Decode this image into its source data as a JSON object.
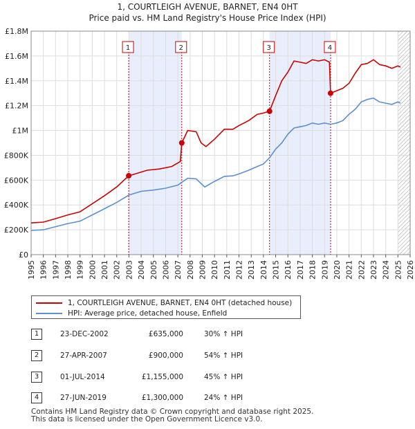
{
  "chart_data": {
    "type": "line",
    "title": "1, COURTLEIGH AVENUE, BARNET, EN4 0HT",
    "subtitle": "Price paid vs. HM Land Registry's House Price Index (HPI)",
    "xlabel": "",
    "ylabel": "",
    "xlim": [
      1995,
      2026
    ],
    "ylim": [
      0,
      1800000
    ],
    "x_ticks": [
      "1995",
      "1996",
      "1997",
      "1998",
      "1999",
      "2000",
      "2001",
      "2002",
      "2003",
      "2004",
      "2005",
      "2006",
      "2007",
      "2008",
      "2009",
      "2010",
      "2011",
      "2012",
      "2013",
      "2014",
      "2015",
      "2016",
      "2017",
      "2018",
      "2019",
      "2020",
      "2021",
      "2022",
      "2023",
      "2024",
      "2025",
      "2026"
    ],
    "y_ticks": [
      {
        "value": 0,
        "label": "£0"
      },
      {
        "value": 200000,
        "label": "£200K"
      },
      {
        "value": 400000,
        "label": "£400K"
      },
      {
        "value": 600000,
        "label": "£600K"
      },
      {
        "value": 800000,
        "label": "£800K"
      },
      {
        "value": 1000000,
        "label": "£1M"
      },
      {
        "value": 1200000,
        "label": "£1.2M"
      },
      {
        "value": 1400000,
        "label": "£1.4M"
      },
      {
        "value": 1600000,
        "label": "£1.6M"
      },
      {
        "value": 1800000,
        "label": "£1.8M"
      }
    ],
    "shaded_ranges": [
      [
        2002.98,
        2007.32
      ],
      [
        2014.5,
        2019.49
      ]
    ],
    "hatched_from": 2025.0,
    "series": [
      {
        "name": "1, COURTLEIGH AVENUE, BARNET, EN4 0HT (detached house)",
        "color": "#cc0000",
        "points": [
          [
            1995.0,
            255000
          ],
          [
            1996.0,
            262000
          ],
          [
            1997.0,
            290000
          ],
          [
            1998.0,
            320000
          ],
          [
            1999.0,
            345000
          ],
          [
            2000.0,
            410000
          ],
          [
            2001.0,
            475000
          ],
          [
            2002.0,
            545000
          ],
          [
            2002.98,
            635000
          ],
          [
            2003.5,
            650000
          ],
          [
            2004.5,
            680000
          ],
          [
            2005.5,
            690000
          ],
          [
            2006.5,
            710000
          ],
          [
            2007.2,
            750000
          ],
          [
            2007.32,
            900000
          ],
          [
            2007.8,
            1000000
          ],
          [
            2008.5,
            990000
          ],
          [
            2008.9,
            900000
          ],
          [
            2009.3,
            870000
          ],
          [
            2010.0,
            930000
          ],
          [
            2010.8,
            1010000
          ],
          [
            2011.5,
            1010000
          ],
          [
            2012.0,
            1040000
          ],
          [
            2012.8,
            1080000
          ],
          [
            2013.5,
            1130000
          ],
          [
            2014.0,
            1140000
          ],
          [
            2014.5,
            1155000
          ],
          [
            2015.0,
            1280000
          ],
          [
            2015.5,
            1400000
          ],
          [
            2016.0,
            1470000
          ],
          [
            2016.5,
            1560000
          ],
          [
            2017.0,
            1550000
          ],
          [
            2017.5,
            1540000
          ],
          [
            2018.0,
            1570000
          ],
          [
            2018.5,
            1560000
          ],
          [
            2019.0,
            1570000
          ],
          [
            2019.4,
            1550000
          ],
          [
            2019.49,
            1300000
          ],
          [
            2020.0,
            1320000
          ],
          [
            2020.5,
            1340000
          ],
          [
            2021.0,
            1380000
          ],
          [
            2021.5,
            1460000
          ],
          [
            2022.0,
            1530000
          ],
          [
            2022.5,
            1540000
          ],
          [
            2023.0,
            1570000
          ],
          [
            2023.5,
            1530000
          ],
          [
            2024.0,
            1520000
          ],
          [
            2024.5,
            1500000
          ],
          [
            2025.0,
            1520000
          ],
          [
            2025.2,
            1510000
          ]
        ]
      },
      {
        "name": "HPI: Average price, detached house, Enfield",
        "color": "#5b8fd0",
        "points": [
          [
            1995.0,
            195000
          ],
          [
            1996.0,
            200000
          ],
          [
            1997.0,
            225000
          ],
          [
            1998.0,
            250000
          ],
          [
            1999.0,
            270000
          ],
          [
            2000.0,
            320000
          ],
          [
            2001.0,
            370000
          ],
          [
            2002.0,
            420000
          ],
          [
            2003.0,
            480000
          ],
          [
            2004.0,
            510000
          ],
          [
            2005.0,
            520000
          ],
          [
            2006.0,
            535000
          ],
          [
            2007.0,
            560000
          ],
          [
            2007.8,
            615000
          ],
          [
            2008.5,
            610000
          ],
          [
            2009.2,
            545000
          ],
          [
            2010.0,
            590000
          ],
          [
            2010.8,
            630000
          ],
          [
            2011.5,
            635000
          ],
          [
            2012.0,
            650000
          ],
          [
            2012.8,
            680000
          ],
          [
            2013.5,
            710000
          ],
          [
            2014.0,
            730000
          ],
          [
            2014.5,
            780000
          ],
          [
            2015.0,
            850000
          ],
          [
            2015.5,
            900000
          ],
          [
            2016.0,
            970000
          ],
          [
            2016.5,
            1020000
          ],
          [
            2017.0,
            1030000
          ],
          [
            2017.5,
            1040000
          ],
          [
            2018.0,
            1060000
          ],
          [
            2018.5,
            1050000
          ],
          [
            2019.0,
            1060000
          ],
          [
            2019.5,
            1050000
          ],
          [
            2020.0,
            1060000
          ],
          [
            2020.5,
            1080000
          ],
          [
            2021.0,
            1130000
          ],
          [
            2021.5,
            1170000
          ],
          [
            2022.0,
            1230000
          ],
          [
            2022.5,
            1250000
          ],
          [
            2023.0,
            1260000
          ],
          [
            2023.5,
            1230000
          ],
          [
            2024.0,
            1220000
          ],
          [
            2024.5,
            1210000
          ],
          [
            2025.0,
            1230000
          ],
          [
            2025.2,
            1220000
          ]
        ]
      }
    ],
    "sales": [
      {
        "num": "1",
        "x": 2002.98,
        "price": 635000
      },
      {
        "num": "2",
        "x": 2007.32,
        "price": 900000
      },
      {
        "num": "3",
        "x": 2014.5,
        "price": 1155000
      },
      {
        "num": "4",
        "x": 2019.49,
        "price": 1300000
      }
    ]
  },
  "legend": {
    "items": [
      {
        "label": "1, COURTLEIGH AVENUE, BARNET, EN4 0HT (detached house)",
        "color": "#cc0000"
      },
      {
        "label": "HPI: Average price, detached house, Enfield",
        "color": "#5b8fd0"
      }
    ]
  },
  "sales_table": [
    {
      "num": "1",
      "date": "23-DEC-2002",
      "price": "£635,000",
      "hpi": "30% ↑ HPI"
    },
    {
      "num": "2",
      "date": "27-APR-2007",
      "price": "£900,000",
      "hpi": "54% ↑ HPI"
    },
    {
      "num": "3",
      "date": "01-JUL-2014",
      "price": "£1,155,000",
      "hpi": "45% ↑ HPI"
    },
    {
      "num": "4",
      "date": "27-JUN-2019",
      "price": "£1,300,000",
      "hpi": "24% ↑ HPI"
    }
  ],
  "footer": {
    "line1": "Contains HM Land Registry data © Crown copyright and database right 2025.",
    "line2": "This data is licensed under the Open Government Licence v3.0."
  }
}
